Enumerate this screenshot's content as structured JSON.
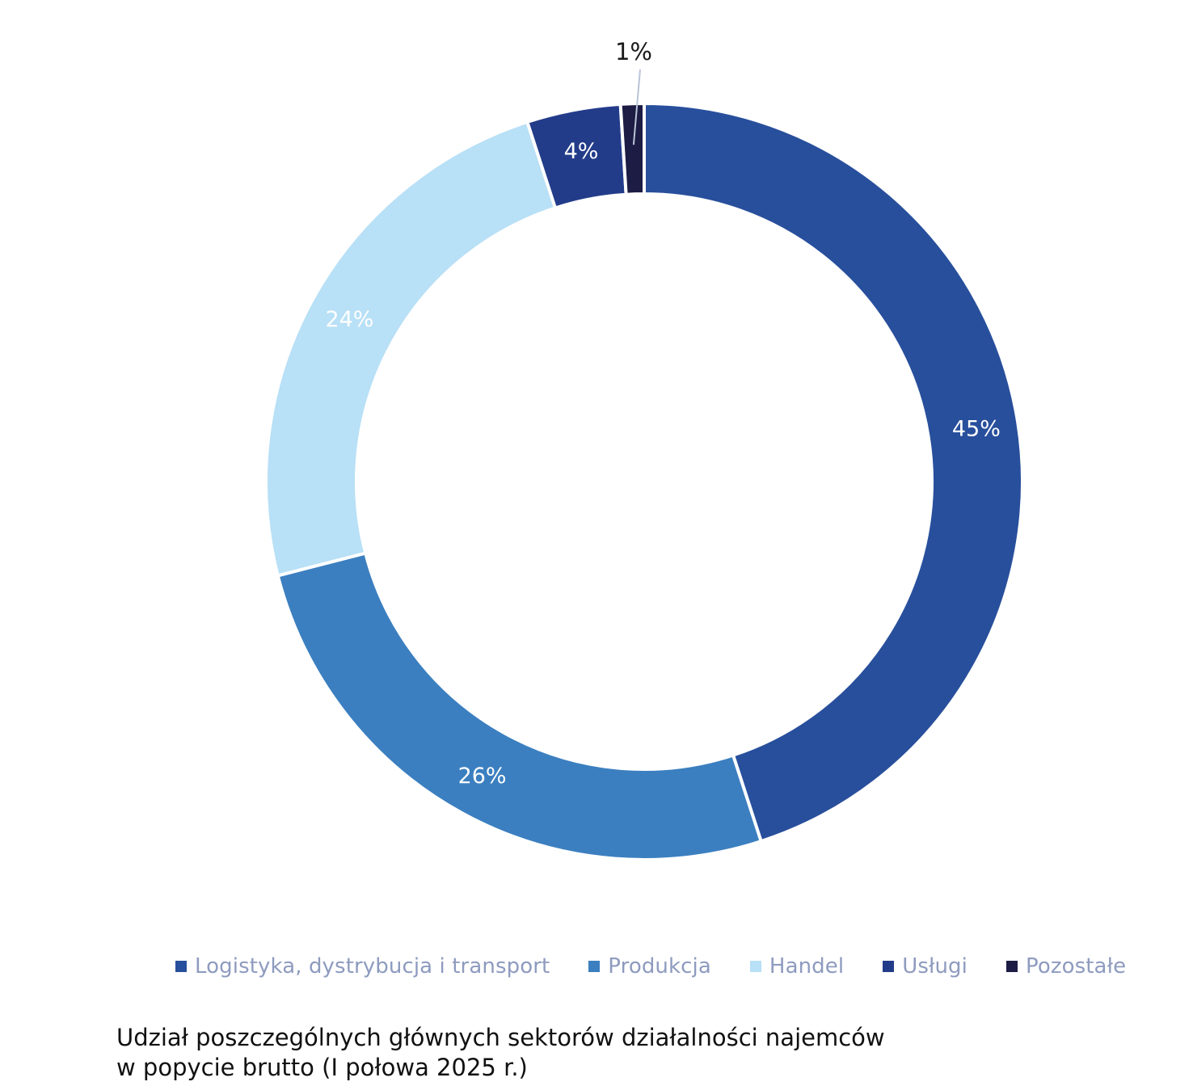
{
  "chart_data": {
    "type": "pie",
    "donut": true,
    "categories": [
      "Logistyka, dystrybucja i transport",
      "Produkcja",
      "Handel",
      "Usługi",
      "Pozostałe"
    ],
    "values": [
      45,
      26,
      24,
      4,
      1
    ],
    "data_labels": [
      "45%",
      "26%",
      "24%",
      "4%",
      "1%"
    ],
    "colors": [
      "#284f9c",
      "#3b7fc0",
      "#b8e0f6",
      "#233c8a",
      "#1c1c44"
    ],
    "label_color": "#ffffff",
    "outside_label_color": "#1a1a1a",
    "legend_position": "bottom",
    "legend_text_color": "#8e9bbf"
  },
  "caption": {
    "line1": "Udział poszczególnych głównych sektorów działalności najemców",
    "line2": "w popycie brutto (I połowa 2025 r.)"
  }
}
